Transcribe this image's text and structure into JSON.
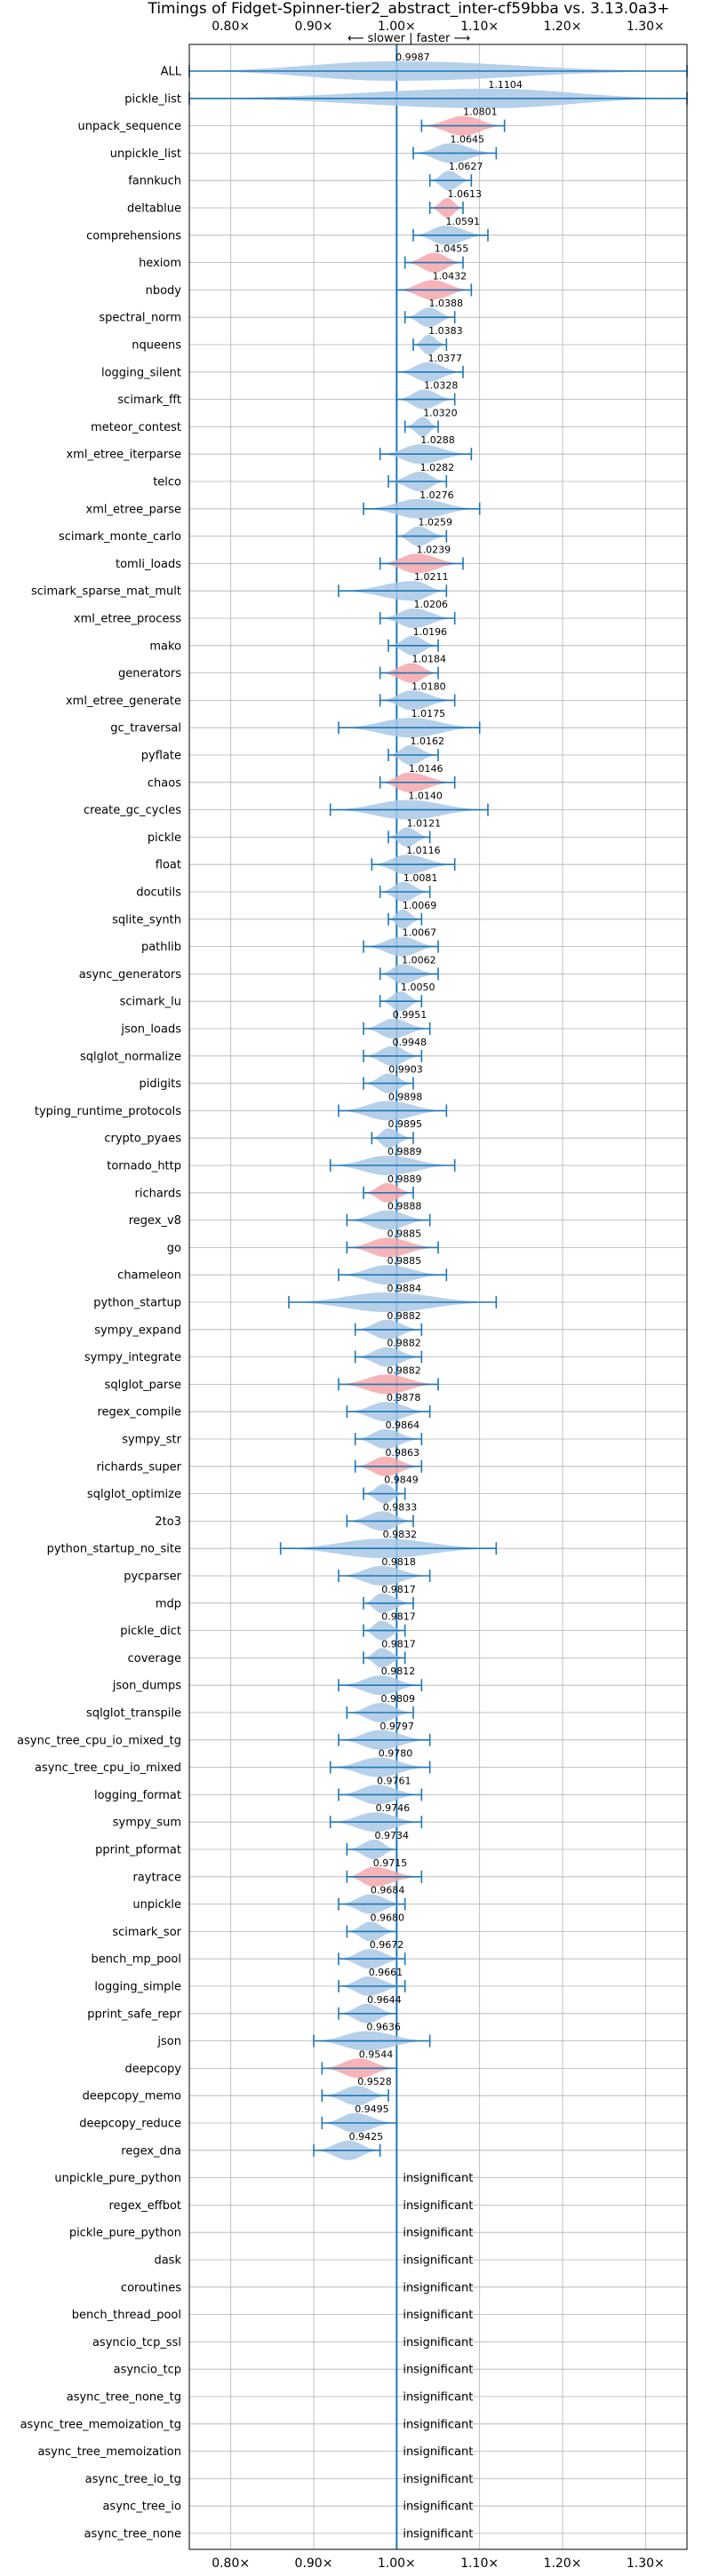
{
  "chart_data": {
    "type": "violin",
    "title": "Timings of Fidget-Spinner-tier2_abstract_inter-cf59bba vs. 3.13.0a3+",
    "direction_label": "⟵ slower  |  faster ⟶",
    "xlim": [
      0.75,
      1.35
    ],
    "x_ticks": [
      {
        "value": 0.8,
        "label": "0.80×"
      },
      {
        "value": 0.9,
        "label": "0.90×"
      },
      {
        "value": 1.0,
        "label": "1.00×"
      },
      {
        "value": 1.1,
        "label": "1.10×"
      },
      {
        "value": 1.2,
        "label": "1.20×"
      },
      {
        "value": 1.3,
        "label": "1.30×"
      }
    ],
    "grid": true,
    "colors": {
      "normal": "#a9c8e6",
      "highlight": "#f4a7ab",
      "line": "#1f77b4",
      "grid": "#b0b0b0"
    },
    "insignificant_label": "insignificant",
    "benchmarks": [
      {
        "name": "ALL",
        "value": 0.9987,
        "min": 0.75,
        "max": 1.35,
        "highlight": false
      },
      {
        "name": "pickle_list",
        "value": 1.1104,
        "min": 0.75,
        "max": 1.35,
        "highlight": false
      },
      {
        "name": "unpack_sequence",
        "value": 1.0801,
        "min": 1.03,
        "max": 1.13,
        "highlight": true
      },
      {
        "name": "unpickle_list",
        "value": 1.0645,
        "min": 1.02,
        "max": 1.12,
        "highlight": false
      },
      {
        "name": "fannkuch",
        "value": 1.0627,
        "min": 1.04,
        "max": 1.09,
        "highlight": false
      },
      {
        "name": "deltablue",
        "value": 1.0613,
        "min": 1.04,
        "max": 1.08,
        "highlight": true
      },
      {
        "name": "comprehensions",
        "value": 1.0591,
        "min": 1.02,
        "max": 1.11,
        "highlight": false
      },
      {
        "name": "hexiom",
        "value": 1.0455,
        "min": 1.01,
        "max": 1.08,
        "highlight": true
      },
      {
        "name": "nbody",
        "value": 1.0432,
        "min": 1.0,
        "max": 1.09,
        "highlight": true
      },
      {
        "name": "spectral_norm",
        "value": 1.0388,
        "min": 1.01,
        "max": 1.07,
        "highlight": false
      },
      {
        "name": "nqueens",
        "value": 1.0383,
        "min": 1.02,
        "max": 1.06,
        "highlight": false
      },
      {
        "name": "logging_silent",
        "value": 1.0377,
        "min": 1.0,
        "max": 1.08,
        "highlight": false
      },
      {
        "name": "scimark_fft",
        "value": 1.0328,
        "min": 1.0,
        "max": 1.07,
        "highlight": false
      },
      {
        "name": "meteor_contest",
        "value": 1.032,
        "min": 1.01,
        "max": 1.05,
        "highlight": false
      },
      {
        "name": "xml_etree_iterparse",
        "value": 1.0288,
        "min": 0.98,
        "max": 1.09,
        "highlight": false
      },
      {
        "name": "telco",
        "value": 1.0282,
        "min": 0.99,
        "max": 1.06,
        "highlight": false
      },
      {
        "name": "xml_etree_parse",
        "value": 1.0276,
        "min": 0.96,
        "max": 1.1,
        "highlight": false
      },
      {
        "name": "scimark_monte_carlo",
        "value": 1.0259,
        "min": 1.0,
        "max": 1.06,
        "highlight": false
      },
      {
        "name": "tomli_loads",
        "value": 1.0239,
        "min": 0.98,
        "max": 1.08,
        "highlight": true
      },
      {
        "name": "scimark_sparse_mat_mult",
        "value": 1.0211,
        "min": 0.93,
        "max": 1.06,
        "highlight": false
      },
      {
        "name": "xml_etree_process",
        "value": 1.0206,
        "min": 0.98,
        "max": 1.07,
        "highlight": false
      },
      {
        "name": "mako",
        "value": 1.0196,
        "min": 0.99,
        "max": 1.05,
        "highlight": false
      },
      {
        "name": "generators",
        "value": 1.0184,
        "min": 0.98,
        "max": 1.05,
        "highlight": true
      },
      {
        "name": "xml_etree_generate",
        "value": 1.018,
        "min": 0.98,
        "max": 1.07,
        "highlight": false
      },
      {
        "name": "gc_traversal",
        "value": 1.0175,
        "min": 0.93,
        "max": 1.1,
        "highlight": false
      },
      {
        "name": "pyflate",
        "value": 1.0162,
        "min": 0.99,
        "max": 1.05,
        "highlight": false
      },
      {
        "name": "chaos",
        "value": 1.0146,
        "min": 0.98,
        "max": 1.07,
        "highlight": true
      },
      {
        "name": "create_gc_cycles",
        "value": 1.014,
        "min": 0.92,
        "max": 1.11,
        "highlight": false
      },
      {
        "name": "pickle",
        "value": 1.0121,
        "min": 0.99,
        "max": 1.04,
        "highlight": false
      },
      {
        "name": "float",
        "value": 1.0116,
        "min": 0.97,
        "max": 1.07,
        "highlight": false
      },
      {
        "name": "docutils",
        "value": 1.0081,
        "min": 0.98,
        "max": 1.04,
        "highlight": false
      },
      {
        "name": "sqlite_synth",
        "value": 1.0069,
        "min": 0.99,
        "max": 1.03,
        "highlight": false
      },
      {
        "name": "pathlib",
        "value": 1.0067,
        "min": 0.96,
        "max": 1.05,
        "highlight": false
      },
      {
        "name": "async_generators",
        "value": 1.0062,
        "min": 0.98,
        "max": 1.05,
        "highlight": false
      },
      {
        "name": "scimark_lu",
        "value": 1.005,
        "min": 0.98,
        "max": 1.03,
        "highlight": false
      },
      {
        "name": "json_loads",
        "value": 0.9951,
        "min": 0.96,
        "max": 1.04,
        "highlight": false
      },
      {
        "name": "sqlglot_normalize",
        "value": 0.9948,
        "min": 0.96,
        "max": 1.03,
        "highlight": false
      },
      {
        "name": "pidigits",
        "value": 0.9903,
        "min": 0.96,
        "max": 1.02,
        "highlight": false
      },
      {
        "name": "typing_runtime_protocols",
        "value": 0.9898,
        "min": 0.93,
        "max": 1.06,
        "highlight": false
      },
      {
        "name": "crypto_pyaes",
        "value": 0.9895,
        "min": 0.97,
        "max": 1.02,
        "highlight": false
      },
      {
        "name": "tornado_http",
        "value": 0.9889,
        "min": 0.92,
        "max": 1.07,
        "highlight": false
      },
      {
        "name": "richards",
        "value": 0.9889,
        "min": 0.96,
        "max": 1.02,
        "highlight": true
      },
      {
        "name": "regex_v8",
        "value": 0.9888,
        "min": 0.94,
        "max": 1.04,
        "highlight": false
      },
      {
        "name": "go",
        "value": 0.9885,
        "min": 0.94,
        "max": 1.05,
        "highlight": true
      },
      {
        "name": "chameleon",
        "value": 0.9885,
        "min": 0.93,
        "max": 1.06,
        "highlight": false
      },
      {
        "name": "python_startup",
        "value": 0.9884,
        "min": 0.87,
        "max": 1.12,
        "highlight": false
      },
      {
        "name": "sympy_expand",
        "value": 0.9882,
        "min": 0.95,
        "max": 1.03,
        "highlight": false
      },
      {
        "name": "sympy_integrate",
        "value": 0.9882,
        "min": 0.95,
        "max": 1.03,
        "highlight": false
      },
      {
        "name": "sqlglot_parse",
        "value": 0.9882,
        "min": 0.93,
        "max": 1.05,
        "highlight": true
      },
      {
        "name": "regex_compile",
        "value": 0.9878,
        "min": 0.94,
        "max": 1.04,
        "highlight": false
      },
      {
        "name": "sympy_str",
        "value": 0.9864,
        "min": 0.95,
        "max": 1.03,
        "highlight": false
      },
      {
        "name": "richards_super",
        "value": 0.9863,
        "min": 0.95,
        "max": 1.03,
        "highlight": true
      },
      {
        "name": "sqlglot_optimize",
        "value": 0.9849,
        "min": 0.96,
        "max": 1.01,
        "highlight": false
      },
      {
        "name": "2to3",
        "value": 0.9833,
        "min": 0.94,
        "max": 1.02,
        "highlight": false
      },
      {
        "name": "python_startup_no_site",
        "value": 0.9832,
        "min": 0.86,
        "max": 1.12,
        "highlight": false
      },
      {
        "name": "pycparser",
        "value": 0.9818,
        "min": 0.93,
        "max": 1.04,
        "highlight": false
      },
      {
        "name": "mdp",
        "value": 0.9817,
        "min": 0.96,
        "max": 1.02,
        "highlight": false
      },
      {
        "name": "pickle_dict",
        "value": 0.9817,
        "min": 0.96,
        "max": 1.01,
        "highlight": false
      },
      {
        "name": "coverage",
        "value": 0.9817,
        "min": 0.96,
        "max": 1.01,
        "highlight": false
      },
      {
        "name": "json_dumps",
        "value": 0.9812,
        "min": 0.93,
        "max": 1.03,
        "highlight": false
      },
      {
        "name": "sqlglot_transpile",
        "value": 0.9809,
        "min": 0.94,
        "max": 1.02,
        "highlight": false
      },
      {
        "name": "async_tree_cpu_io_mixed_tg",
        "value": 0.9797,
        "min": 0.93,
        "max": 1.04,
        "highlight": false
      },
      {
        "name": "async_tree_cpu_io_mixed",
        "value": 0.978,
        "min": 0.92,
        "max": 1.04,
        "highlight": false
      },
      {
        "name": "logging_format",
        "value": 0.9761,
        "min": 0.93,
        "max": 1.03,
        "highlight": false
      },
      {
        "name": "sympy_sum",
        "value": 0.9746,
        "min": 0.92,
        "max": 1.03,
        "highlight": false
      },
      {
        "name": "pprint_pformat",
        "value": 0.9734,
        "min": 0.94,
        "max": 1.0,
        "highlight": false
      },
      {
        "name": "raytrace",
        "value": 0.9715,
        "min": 0.94,
        "max": 1.03,
        "highlight": true
      },
      {
        "name": "unpickle",
        "value": 0.9684,
        "min": 0.93,
        "max": 1.01,
        "highlight": false
      },
      {
        "name": "scimark_sor",
        "value": 0.968,
        "min": 0.94,
        "max": 1.0,
        "highlight": false
      },
      {
        "name": "bench_mp_pool",
        "value": 0.9672,
        "min": 0.93,
        "max": 1.01,
        "highlight": false
      },
      {
        "name": "logging_simple",
        "value": 0.9661,
        "min": 0.93,
        "max": 1.01,
        "highlight": false
      },
      {
        "name": "pprint_safe_repr",
        "value": 0.9644,
        "min": 0.93,
        "max": 1.0,
        "highlight": false
      },
      {
        "name": "json",
        "value": 0.9636,
        "min": 0.9,
        "max": 1.04,
        "highlight": false
      },
      {
        "name": "deepcopy",
        "value": 0.9544,
        "min": 0.91,
        "max": 1.0,
        "highlight": true
      },
      {
        "name": "deepcopy_memo",
        "value": 0.9528,
        "min": 0.91,
        "max": 0.99,
        "highlight": false
      },
      {
        "name": "deepcopy_reduce",
        "value": 0.9495,
        "min": 0.91,
        "max": 1.0,
        "highlight": false
      },
      {
        "name": "regex_dna",
        "value": 0.9425,
        "min": 0.9,
        "max": 0.98,
        "highlight": false
      },
      {
        "name": "unpickle_pure_python",
        "value": null,
        "insignificant": true
      },
      {
        "name": "regex_effbot",
        "value": null,
        "insignificant": true
      },
      {
        "name": "pickle_pure_python",
        "value": null,
        "insignificant": true
      },
      {
        "name": "dask",
        "value": null,
        "insignificant": true
      },
      {
        "name": "coroutines",
        "value": null,
        "insignificant": true
      },
      {
        "name": "bench_thread_pool",
        "value": null,
        "insignificant": true
      },
      {
        "name": "asyncio_tcp_ssl",
        "value": null,
        "insignificant": true
      },
      {
        "name": "asyncio_tcp",
        "value": null,
        "insignificant": true
      },
      {
        "name": "async_tree_none_tg",
        "value": null,
        "insignificant": true
      },
      {
        "name": "async_tree_memoization_tg",
        "value": null,
        "insignificant": true
      },
      {
        "name": "async_tree_memoization",
        "value": null,
        "insignificant": true
      },
      {
        "name": "async_tree_io_tg",
        "value": null,
        "insignificant": true
      },
      {
        "name": "async_tree_io",
        "value": null,
        "insignificant": true
      },
      {
        "name": "async_tree_none",
        "value": null,
        "insignificant": true
      }
    ]
  }
}
